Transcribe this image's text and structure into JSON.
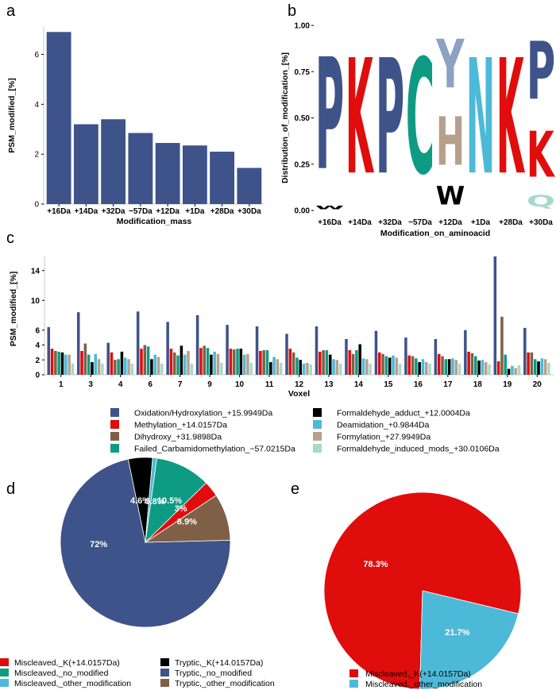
{
  "panels": {
    "a": "a",
    "b": "b",
    "c": "c",
    "d": "d",
    "e": "e"
  },
  "colors": {
    "blue": "#3e5389",
    "red": "#e00d0d",
    "teal": "#0e9b84",
    "brown": "#7f6047",
    "black": "#000000",
    "cyan": "#4db9d8",
    "tan": "#b6a08b",
    "mint": "#a9d9cb",
    "lightblue": "#8da1c1"
  },
  "chart_data": [
    {
      "id": "a",
      "type": "bar",
      "title": "",
      "xlabel": "Modification_mass",
      "ylabel": "PSM_modified_[%]",
      "categories": [
        "+16Da",
        "+14Da",
        "+32Da",
        "−57Da",
        "+12Da",
        "+1Da",
        "+28Da",
        "+30Da"
      ],
      "values": [
        6.9,
        3.2,
        3.4,
        2.85,
        2.45,
        2.35,
        2.1,
        1.45
      ],
      "ylim": [
        0,
        7.1
      ],
      "yticks": [
        0,
        2,
        4,
        6
      ],
      "color": "#3e5389"
    },
    {
      "id": "b",
      "type": "sequence-logo",
      "xlabel": "Modification_on_aminoacid",
      "ylabel": "Distribution_of_modification_[%]",
      "categories": [
        "+16Da",
        "+14Da",
        "+32Da",
        "−57Da",
        "+12Da",
        "+1Da",
        "+28Da",
        "+30Da"
      ],
      "yticks": [
        "0.00",
        "0.25",
        "0.50",
        "0.75",
        "1.00"
      ],
      "ylim": [
        0,
        1
      ],
      "stacks": [
        [
          {
            "letter": "W",
            "value": 0.03,
            "color": "#000000"
          },
          {
            "letter": "P",
            "value": 0.97,
            "color": "#3e5389"
          }
        ],
        [
          {
            "letter": "K",
            "value": 1.0,
            "color": "#e00d0d"
          }
        ],
        [
          {
            "letter": "P",
            "value": 1.0,
            "color": "#3e5389"
          }
        ],
        [
          {
            "letter": "C",
            "value": 1.0,
            "color": "#0e9b84"
          }
        ],
        [
          {
            "letter": "W",
            "value": 0.16,
            "color": "#000000"
          },
          {
            "letter": "H",
            "value": 0.42,
            "color": "#b6a08b"
          },
          {
            "letter": "Y",
            "value": 0.42,
            "color": "#8da1c1"
          }
        ],
        [
          {
            "letter": "N",
            "value": 1.0,
            "color": "#4db9d8"
          }
        ],
        [
          {
            "letter": "K",
            "value": 1.0,
            "color": "#e00d0d"
          }
        ],
        [
          {
            "letter": "Q",
            "value": 0.1,
            "color": "#a9d9cb"
          },
          {
            "letter": "K",
            "value": 0.4,
            "color": "#e00d0d"
          },
          {
            "letter": "P",
            "value": 0.5,
            "color": "#3e5389"
          }
        ]
      ]
    },
    {
      "id": "c",
      "type": "bar",
      "title": "",
      "xlabel": "Voxel",
      "ylabel": "PSM_modified_[%]",
      "categories": [
        "1",
        "3",
        "4",
        "6",
        "7",
        "9",
        "10",
        "11",
        "12",
        "13",
        "14",
        "15",
        "16",
        "17",
        "18",
        "19",
        "20"
      ],
      "ylim": [
        0,
        16
      ],
      "yticks": [
        0,
        2,
        4,
        6,
        10,
        14
      ],
      "series": [
        {
          "name": "Oxidation/Hydroxylation_+15.9949Da",
          "color": "#3e5389",
          "values": [
            6.4,
            8.4,
            4.3,
            8.5,
            7.1,
            8.0,
            6.7,
            6.5,
            5.5,
            6.5,
            4.8,
            5.9,
            5.0,
            4.8,
            6.0,
            15.9,
            6.3
          ]
        },
        {
          "name": "Methylation_+14.0157Da",
          "color": "#e00d0d",
          "values": [
            3.5,
            3.2,
            3.0,
            3.5,
            3.5,
            3.6,
            3.5,
            3.2,
            3.5,
            3.1,
            3.3,
            3.0,
            2.6,
            2.8,
            3.1,
            1.8,
            3.0
          ]
        },
        {
          "name": "Dihydroxy_+31.9898Da",
          "color": "#7f6047",
          "values": [
            3.2,
            4.2,
            2.0,
            4.0,
            3.0,
            3.9,
            3.4,
            3.3,
            3.0,
            3.3,
            2.8,
            2.8,
            2.5,
            2.5,
            2.9,
            7.8,
            3.0
          ]
        },
        {
          "name": "Failed_Carbamidomethylation_−57.0215Da",
          "color": "#0e9b84",
          "values": [
            3.1,
            2.7,
            2.1,
            3.8,
            2.6,
            3.6,
            3.5,
            3.3,
            2.3,
            3.3,
            3.3,
            2.5,
            2.2,
            2.1,
            2.5,
            2.7,
            2.1
          ]
        },
        {
          "name": "Formaldehyde_adduct_+12.0004Da",
          "color": "#000000",
          "values": [
            3.0,
            1.7,
            3.1,
            2.1,
            3.9,
            2.7,
            3.5,
            1.7,
            2.0,
            2.7,
            4.1,
            2.3,
            1.7,
            2.1,
            1.9,
            0.8,
            1.8
          ]
        },
        {
          "name": "Deamidation_+0.9844Da",
          "color": "#4db9d8",
          "values": [
            2.7,
            2.8,
            2.3,
            2.7,
            2.7,
            3.1,
            2.7,
            2.4,
            1.5,
            2.1,
            2.2,
            2.6,
            2.1,
            2.2,
            2.0,
            1.2,
            2.2
          ]
        },
        {
          "name": "Formylation_+27.9949Da",
          "color": "#b6a08b",
          "values": [
            2.7,
            2.1,
            2.1,
            2.4,
            3.2,
            2.8,
            2.8,
            2.1,
            1.6,
            2.0,
            2.1,
            2.3,
            1.7,
            2.0,
            1.7,
            0.9,
            2.1
          ]
        },
        {
          "name": "Formaldehyde_induced_mods_+30.0106Da",
          "color": "#a9d9cb",
          "values": [
            1.5,
            1.5,
            1.5,
            1.5,
            1.5,
            1.6,
            1.6,
            1.6,
            1.4,
            1.5,
            1.5,
            1.5,
            1.5,
            1.5,
            1.4,
            1.3,
            1.6
          ]
        }
      ]
    },
    {
      "id": "d",
      "type": "pie",
      "slices": [
        {
          "name": "Tryptic,_no_modified",
          "value": 72.0,
          "label": "72%",
          "color": "#3e5389"
        },
        {
          "name": "Tryptic,_K(+14.0157Da)",
          "value": 4.6,
          "label": "4.6%",
          "color": "#000000"
        },
        {
          "name": "Miscleaved,_other_modification",
          "value": 0.8,
          "label": "0.8%",
          "color": "#4db9d8"
        },
        {
          "name": "Miscleaved,_no_modified",
          "value": 10.5,
          "label": "10.5%",
          "color": "#0e9b84"
        },
        {
          "name": "Miscleaved,_K(+14.0157Da)",
          "value": 3.0,
          "label": "3%",
          "color": "#e00d0d"
        },
        {
          "name": "Tryptic,_other_modification",
          "value": 8.9,
          "label": "8.9%",
          "color": "#7f6047"
        }
      ]
    },
    {
      "id": "e",
      "type": "pie",
      "slices": [
        {
          "name": "Miscleaved,_K(+14.0157Da)",
          "value": 78.3,
          "label": "78.3%",
          "color": "#e00d0d"
        },
        {
          "name": "Miscleaved,_other_modification",
          "value": 21.7,
          "label": "21.7%",
          "color": "#4db9d8"
        }
      ]
    }
  ],
  "legend_c": [
    {
      "label": "Oxidation/Hydroxylation_+15.9949Da",
      "color": "#3e5389"
    },
    {
      "label": "Methylation_+14.0157Da",
      "color": "#e00d0d"
    },
    {
      "label": "Dihydroxy_+31.9898Da",
      "color": "#7f6047"
    },
    {
      "label": "Failed_Carbamidomethylation_−57.0215Da",
      "color": "#0e9b84"
    },
    {
      "label": "Formaldehyde_adduct_+12.0004Da",
      "color": "#000000"
    },
    {
      "label": "Deamidation_+0.9844Da",
      "color": "#4db9d8"
    },
    {
      "label": "Formylation_+27.9949Da",
      "color": "#b6a08b"
    },
    {
      "label": "Formaldehyde_induced_mods_+30.0106Da",
      "color": "#a9d9cb"
    }
  ],
  "legend_d": [
    {
      "label": "Miscleaved,_K(+14.0157Da)",
      "color": "#e00d0d"
    },
    {
      "label": "Miscleaved,_no_modified",
      "color": "#0e9b84"
    },
    {
      "label": "Miscleaved,_other_modification",
      "color": "#4db9d8"
    },
    {
      "label": "Tryptic,_K(+14.0157Da)",
      "color": "#000000"
    },
    {
      "label": "Tryptic,_no_modified",
      "color": "#3e5389"
    },
    {
      "label": "Tryptic,_other_modification",
      "color": "#7f6047"
    }
  ],
  "legend_e": [
    {
      "label": "Miscleaved,_K(+14.0157Da)",
      "color": "#e00d0d"
    },
    {
      "label": "Miscleaved,_other_modification",
      "color": "#4db9d8"
    }
  ]
}
